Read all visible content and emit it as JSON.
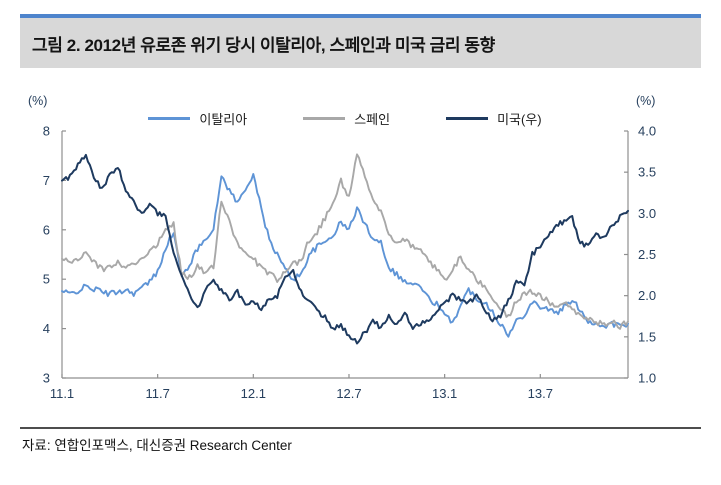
{
  "header": {
    "title": "그림 2. 2012년 유로존 위기 당시 이탈리아, 스페인과 미국 금리 동향"
  },
  "footer": {
    "source": "자료: 연합인포맥스, 대신증권 Research Center"
  },
  "colors": {
    "header_accent": "#4e84cc",
    "header_background": "#d8d8d8",
    "italy_line": "#5e94d6",
    "spain_line": "#a8a8a8",
    "us_line": "#1e3a5f",
    "axis": "#8f8f8f",
    "tick_text": "#27405e"
  },
  "chart_data": {
    "type": "line",
    "title": "그림 2. 2012년 유로존 위기 당시 이탈리아, 스페인과 미국 금리 동향",
    "grid": false,
    "legend_position": "top",
    "left_axis": {
      "unit_label": "(%)",
      "min": 3,
      "max": 8,
      "ticks": [
        8,
        7,
        6,
        5,
        4,
        3
      ]
    },
    "right_axis": {
      "unit_label": "(%)",
      "min": 1.0,
      "max": 4.0,
      "ticks": [
        4.0,
        3.5,
        3.0,
        2.5,
        2.0,
        1.5,
        1.0
      ]
    },
    "x_axis": {
      "description": "months since 2011-01 (labels are yy.m)",
      "min": 0,
      "max": 35.5,
      "tick_positions": [
        0,
        6,
        12,
        18,
        24,
        30
      ],
      "tick_labels": [
        "11.1",
        "11.7",
        "12.1",
        "12.7",
        "13.1",
        "13.7"
      ]
    },
    "legend": [
      {
        "key": "italy",
        "name": "이탈리아",
        "color": "#5e94d6"
      },
      {
        "key": "spain",
        "name": "스페인",
        "color": "#a8a8a8"
      },
      {
        "key": "us",
        "name": "미국(우)",
        "color": "#1e3a5f"
      }
    ],
    "series": [
      {
        "key": "italy",
        "name": "이탈리아",
        "axis": "left",
        "color": "#5e94d6",
        "width": 1.9,
        "start": 0,
        "step": 0.5,
        "jitter": 0.06,
        "values": [
          4.75,
          4.7,
          4.77,
          4.85,
          4.8,
          4.75,
          4.7,
          4.75,
          4.78,
          4.72,
          4.82,
          4.95,
          5.15,
          5.65,
          5.95,
          5.05,
          5.3,
          5.6,
          5.85,
          6.0,
          7.1,
          6.8,
          6.55,
          6.8,
          7.15,
          6.4,
          5.8,
          5.5,
          5.2,
          5.0,
          5.1,
          5.5,
          5.65,
          5.75,
          5.9,
          6.15,
          6.0,
          6.45,
          6.1,
          5.85,
          5.75,
          5.25,
          5.1,
          4.95,
          4.9,
          4.85,
          4.6,
          4.5,
          4.25,
          4.15,
          4.45,
          4.8,
          4.6,
          4.55,
          4.35,
          4.1,
          3.85,
          4.15,
          4.3,
          4.55,
          4.45,
          4.4,
          4.3,
          4.45,
          4.55,
          4.4,
          4.15,
          4.1,
          4.05,
          4.1,
          4.05,
          4.1
        ]
      },
      {
        "key": "spain",
        "name": "스페인",
        "axis": "left",
        "color": "#a8a8a8",
        "width": 1.9,
        "start": 0,
        "step": 0.5,
        "jitter": 0.06,
        "values": [
          5.45,
          5.35,
          5.4,
          5.5,
          5.35,
          5.2,
          5.25,
          5.35,
          5.25,
          5.3,
          5.45,
          5.55,
          5.7,
          6.05,
          6.1,
          5.1,
          5.05,
          5.25,
          5.15,
          5.25,
          6.6,
          6.15,
          5.75,
          5.5,
          5.4,
          5.25,
          5.1,
          5.0,
          5.15,
          5.3,
          5.35,
          5.8,
          5.95,
          6.25,
          6.55,
          7.0,
          6.65,
          7.5,
          7.1,
          6.6,
          6.4,
          5.95,
          5.7,
          5.8,
          5.65,
          5.55,
          5.35,
          5.2,
          5.0,
          5.2,
          5.45,
          5.2,
          5.0,
          4.85,
          4.65,
          4.4,
          4.25,
          4.55,
          4.7,
          4.75,
          4.65,
          4.55,
          4.45,
          4.5,
          4.4,
          4.3,
          4.2,
          4.1,
          4.1,
          4.15,
          4.05,
          4.15
        ]
      },
      {
        "key": "us",
        "name": "미국(우)",
        "axis": "right",
        "color": "#1e3a5f",
        "width": 2.0,
        "start": 0,
        "step": 0.5,
        "jitter": 0.032,
        "values": [
          3.38,
          3.45,
          3.6,
          3.7,
          3.45,
          3.3,
          3.45,
          3.55,
          3.3,
          3.15,
          3.0,
          3.1,
          3.0,
          2.95,
          2.55,
          2.25,
          2.0,
          1.85,
          2.05,
          2.2,
          2.05,
          1.95,
          2.05,
          1.9,
          1.95,
          1.85,
          1.95,
          2.0,
          2.25,
          2.3,
          2.05,
          1.95,
          1.8,
          1.75,
          1.6,
          1.65,
          1.5,
          1.45,
          1.55,
          1.7,
          1.6,
          1.75,
          1.65,
          1.8,
          1.6,
          1.65,
          1.7,
          1.8,
          1.9,
          2.0,
          1.95,
          1.9,
          2.0,
          1.85,
          1.7,
          1.75,
          1.95,
          2.15,
          2.15,
          2.5,
          2.6,
          2.75,
          2.85,
          2.9,
          2.95,
          2.65,
          2.6,
          2.75,
          2.7,
          2.85,
          2.95,
          3.03
        ]
      }
    ]
  }
}
